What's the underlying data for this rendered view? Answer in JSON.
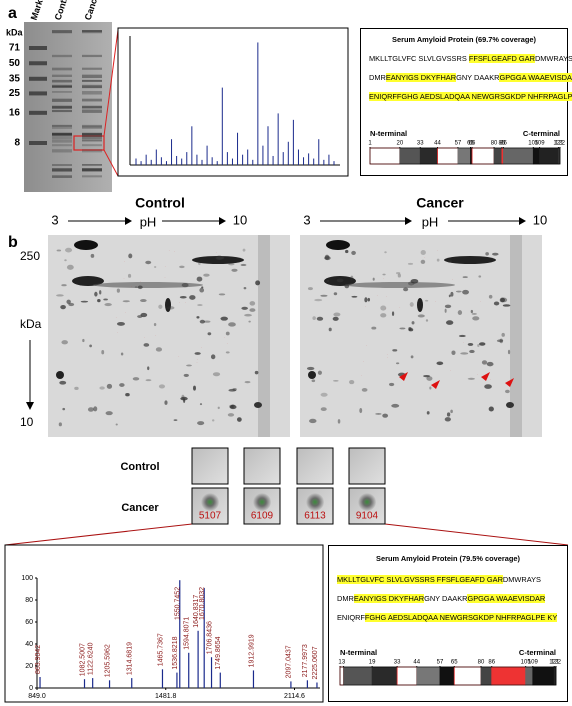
{
  "panel_a": {
    "label": "a",
    "gel": {
      "lanes": [
        "Marker",
        "Control",
        "Cancer"
      ],
      "unit": "kDa",
      "markers": [
        71,
        50,
        35,
        25,
        16,
        8
      ]
    },
    "spectrum": {
      "values": [
        5,
        3,
        8,
        4,
        12,
        6,
        3,
        20,
        7,
        5,
        10,
        30,
        8,
        4,
        15,
        6,
        3,
        60,
        10,
        5,
        25,
        8,
        12,
        4,
        95,
        15,
        30,
        7,
        40,
        10,
        18,
        35,
        12,
        6,
        9,
        5,
        20,
        4,
        8,
        3
      ],
      "ylim": [
        0,
        100
      ]
    },
    "sequence": {
      "title": "Serum Amyloid Protein (69.7% coverage)",
      "lines": [
        [
          {
            "text": "MKLLTGLVFC SLVLGVSSRS ",
            "highlight": false
          },
          {
            "text": "FFSFLGEAFD GAR",
            "highlight": true
          },
          {
            "text": "DMWRAYS",
            "highlight": false
          }
        ],
        [
          {
            "text": "DMR",
            "highlight": false
          },
          {
            "text": "EANYIGS DKYFHAR",
            "highlight": true
          },
          {
            "text": "GNY DAAKR",
            "highlight": false
          },
          {
            "text": "GPGGA WAAEVISDAR",
            "highlight": true
          }
        ],
        [
          {
            "text": "ENIQRFFGHG AEDSLADQAA NEWGRSGKDP NHFRPAGLPE KY",
            "highlight": true
          }
        ]
      ],
      "n_terminal": "N-terminal",
      "c_terminal": "C-terminal",
      "positions": [
        1,
        20,
        33,
        44,
        57,
        65,
        66,
        80,
        85,
        86,
        105,
        109,
        121,
        122
      ]
    }
  },
  "panel_b": {
    "label": "b",
    "gels": [
      {
        "title": "Control"
      },
      {
        "title": "Cancer"
      }
    ],
    "ph_range": [
      3,
      10
    ],
    "ph_label": "pH",
    "mw_range": [
      250,
      10
    ],
    "mw_unit": "kDa",
    "row_labels": [
      "Control",
      "Cancer"
    ],
    "spots": [
      5107,
      6109,
      6113,
      9104
    ],
    "spectrum": {
      "x": [
        863.9042,
        1082.5007,
        {
          "value": 1122.624,
          "label": "1122.6240"
        },
        1205.5962,
        1314.6819,
        1465.7367,
        1536.8218,
        1550.7452,
        1594.8071,
        1640.8317,
        1670.8032,
        1706.8436,
        1749.8654,
        1912.9919,
        2097.0437,
        2177.9973,
        2225.0607
      ],
      "values": [
        10,
        8,
        9,
        7,
        9,
        17,
        14,
        98,
        32,
        52,
        91,
        28,
        14,
        16,
        6,
        7,
        5
      ],
      "xlim": [
        849,
        2240
      ],
      "xticks": [
        {
          "value": 849,
          "label": "849.0"
        },
        1481.8,
        2114.6
      ],
      "ylim": [
        0,
        100
      ],
      "yticks": [
        0,
        20,
        40,
        60,
        80,
        100
      ]
    },
    "sequence": {
      "title": "Serum Amyloid Protein (79.5% coverage)",
      "lines": [
        [
          {
            "text": "MKLLTGLVFC SLVLGVSSRS FFSFLGEAFD GAR",
            "highlight": true
          },
          {
            "text": "DMWRAYS",
            "highlight": false
          }
        ],
        [
          {
            "text": "DMR",
            "highlight": false
          },
          {
            "text": "EANYIGS DKYFHAR",
            "highlight": true
          },
          {
            "text": "GNY DAAKR",
            "highlight": false
          },
          {
            "text": "GPGGA WAAEVISDAR",
            "highlight": true
          }
        ],
        [
          {
            "text": "ENIQRF",
            "highlight": false
          },
          {
            "text": "FGHG AEDSLADQAA NEWGRSGKDP NHFRPAGLPE KY",
            "highlight": true
          }
        ]
      ],
      "n_terminal": "N-terminal",
      "c_terminal": "C-terminal",
      "positions": [
        1,
        3,
        19,
        33,
        44,
        57,
        65,
        80,
        86,
        105,
        109,
        121,
        122
      ]
    }
  }
}
